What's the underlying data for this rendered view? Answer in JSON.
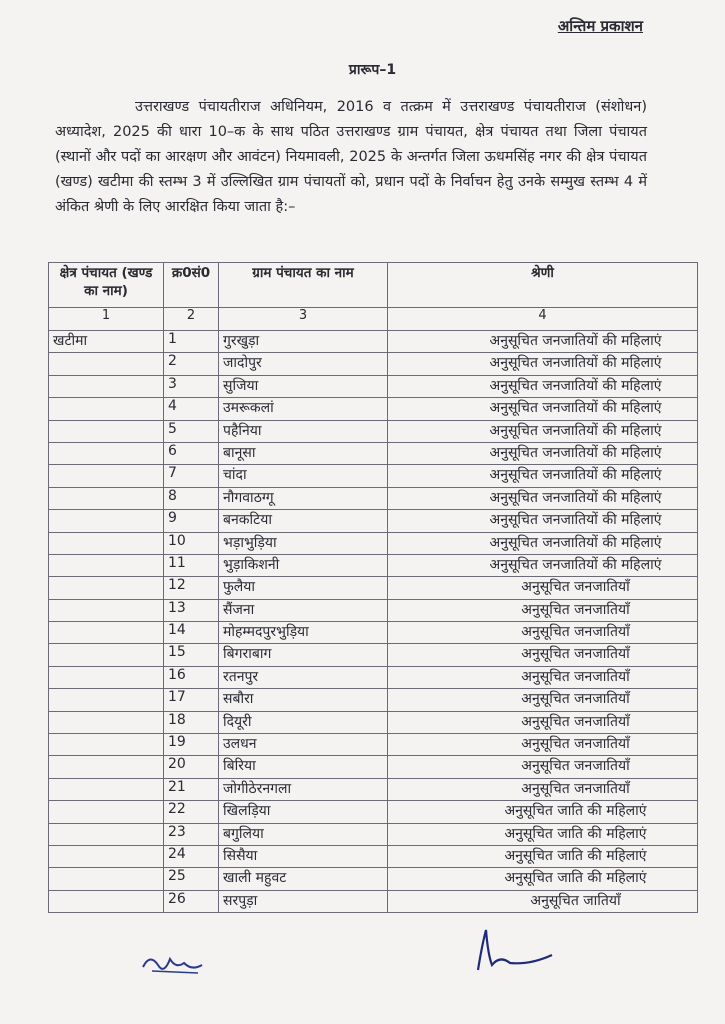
{
  "stamp": "अन्तिम प्रकाशन",
  "title": "प्रारूप–1",
  "paragraph": "उत्तराखण्ड पंचायतीराज अधिनियम, 2016 व तत्क्रम में उत्तराखण्ड पंचायतीराज (संशोधन) अध्यादेश, 2025 की धारा 10–क के साथ पठित उत्तराखण्ड ग्राम पंचायत, क्षेत्र पंचायत तथा जिला पंचायत (स्थानों और पदों का आरक्षण और आवंटन) नियमावली, 2025 के अन्तर्गत जिला ऊधमसिंह नगर की क्षेत्र पंचायत (खण्ड) खटीमा की स्तम्भ 3 में उल्लिखित ग्राम पंचायतों को, प्रधान पदों के निर्वाचन हेतु उनके सम्मुख स्तम्भ 4 में अंकित श्रेणी के लिए आरक्षित किया जाता है:–",
  "table": {
    "headers": [
      "क्षेत्र पंचायत (खण्ड का नाम)",
      "क्र0सं0",
      "ग्राम पंचायत का नाम",
      "श्रेणी"
    ],
    "column_numbers": [
      "1",
      "2",
      "3",
      "4"
    ],
    "block": "खटीमा",
    "rows": [
      {
        "no": "1",
        "name": "गुरखुड़ा",
        "category": "अनुसूचित जनजातियों की महिलाएं"
      },
      {
        "no": "2",
        "name": "जादोपुर",
        "category": "अनुसूचित जनजातियों की महिलाएं"
      },
      {
        "no": "3",
        "name": "सुजिया",
        "category": "अनुसूचित जनजातियों की महिलाएं"
      },
      {
        "no": "4",
        "name": "उमरूकलां",
        "category": "अनुसूचित जनजातियों की महिलाएं"
      },
      {
        "no": "5",
        "name": "पहैनिया",
        "category": "अनुसूचित जनजातियों की महिलाएं"
      },
      {
        "no": "6",
        "name": "बानूसा",
        "category": "अनुसूचित जनजातियों की महिलाएं"
      },
      {
        "no": "7",
        "name": "चांदा",
        "category": "अनुसूचित जनजातियों की महिलाएं"
      },
      {
        "no": "8",
        "name": "नौगवाठग्गू",
        "category": "अनुसूचित जनजातियों की महिलाएं"
      },
      {
        "no": "9",
        "name": "बनकटिया",
        "category": "अनुसूचित जनजातियों की महिलाएं"
      },
      {
        "no": "10",
        "name": "भड़ाभुड़िया",
        "category": "अनुसूचित जनजातियों की महिलाएं"
      },
      {
        "no": "11",
        "name": "भुड़ाकिशनी",
        "category": "अनुसूचित जनजातियों की महिलाएं"
      },
      {
        "no": "12",
        "name": "फुलैया",
        "category": "अनुसूचित जनजातियॉं"
      },
      {
        "no": "13",
        "name": "सैंजना",
        "category": "अनुसूचित जनजातियॉं"
      },
      {
        "no": "14",
        "name": "मोहम्मदपुरभुड़िया",
        "category": "अनुसूचित जनजातियॉं"
      },
      {
        "no": "15",
        "name": "बिगराबाग",
        "category": "अनुसूचित जनजातियॉं"
      },
      {
        "no": "16",
        "name": "रतनपुर",
        "category": "अनुसूचित जनजातियॉं"
      },
      {
        "no": "17",
        "name": "सबौरा",
        "category": "अनुसूचित जनजातियॉं"
      },
      {
        "no": "18",
        "name": "दियूरी",
        "category": "अनुसूचित जनजातियॉं"
      },
      {
        "no": "19",
        "name": "उलधन",
        "category": "अनुसूचित जनजातियॉं"
      },
      {
        "no": "20",
        "name": "बिरिया",
        "category": "अनुसूचित जनजातियॉं"
      },
      {
        "no": "21",
        "name": "जोगीठेरनगला",
        "category": "अनुसूचित जनजातियॉं"
      },
      {
        "no": "22",
        "name": "खिलड़िया",
        "category": "अनुसूचित जाति की महिलाएं"
      },
      {
        "no": "23",
        "name": "बगुलिया",
        "category": "अनुसूचित जाति की महिलाएं"
      },
      {
        "no": "24",
        "name": "सिसैया",
        "category": "अनुसूचित जाति की महिलाएं"
      },
      {
        "no": "25",
        "name": "खाली महुवट",
        "category": "अनुसूचित जाति की महिलाएं"
      },
      {
        "no": "26",
        "name": "सरपुड़ा",
        "category": "अनुसूचित जातियॉं"
      }
    ]
  }
}
